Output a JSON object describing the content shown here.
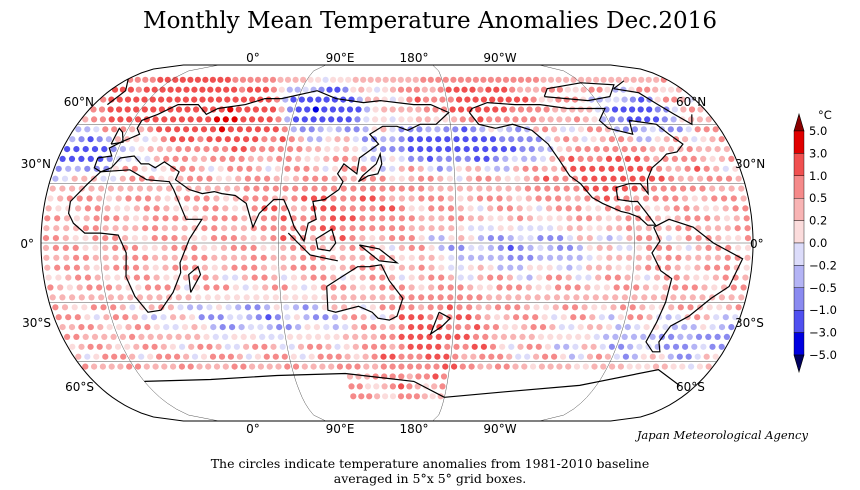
{
  "title": "Monthly Mean Temperature Anomalies Dec.2016",
  "credit": "Japan Meteorological Agency",
  "caption_line1": "The circles indicate temperature anomalies from 1981-2010 baseline",
  "caption_line2": "averaged in 5°x 5° grid boxes.",
  "longitude_labels": [
    "0°",
    "90°E",
    "180°",
    "90°W"
  ],
  "latitude_labels_left": [
    "60°N",
    "30°N",
    "0°",
    "30°S",
    "60°S"
  ],
  "latitude_labels_right": [
    "60°N",
    "30°N",
    "0°",
    "30°S",
    "60°S"
  ],
  "colorbar": {
    "unit": "°C",
    "tick_labels": [
      "5.0",
      "3.0",
      "1.0",
      "0.5",
      "0.2",
      "0.0",
      "−0.2",
      "−0.5",
      "−1.0",
      "−3.0",
      "−5.0"
    ],
    "colors": [
      "#e00000",
      "#f05050",
      "#f58a8a",
      "#f8b4b4",
      "#fbdcdc",
      "#dcdcfa",
      "#b4b4f5",
      "#8a8af0",
      "#5050f0",
      "#0000e0"
    ],
    "over_color": "#8b0000",
    "under_color": "#000060"
  },
  "colors": {
    "land": "#000000",
    "graticule": "#555555",
    "frame": "#000000",
    "purple_extreme": "#5a0a8a"
  }
}
